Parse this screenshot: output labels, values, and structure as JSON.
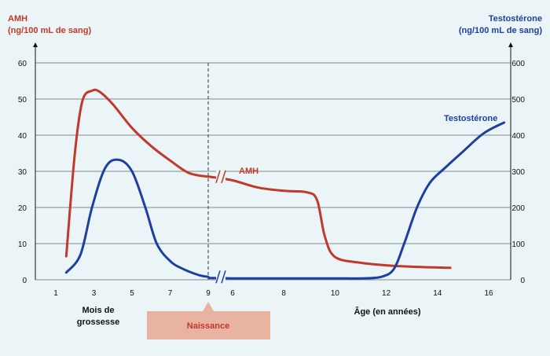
{
  "colors": {
    "background": "#ebf5f7",
    "amh": "#c0392b",
    "testosterone": "#1f3f9e",
    "grid": "#5f6670",
    "birth_box": "#e9b3a2",
    "birth_text": "#c0392b",
    "text": "#111111"
  },
  "chart_data": {
    "type": "line",
    "title": "",
    "left_axis": {
      "label_line1": "AMH",
      "label_line2": "(ng/100 mL de sang)",
      "ylim": [
        0,
        60
      ],
      "ticks": [
        "0",
        "10",
        "20",
        "30",
        "40",
        "50",
        "60"
      ]
    },
    "right_axis": {
      "label_line1": "Testostérone",
      "label_line2": "(ng/100 mL de sang)",
      "ylim": [
        0,
        600
      ],
      "ticks": [
        "0",
        "100",
        "200",
        "300",
        "400",
        "500",
        "600"
      ]
    },
    "x_axis": {
      "pregnancy_label_line1": "Mois de",
      "pregnancy_label_line2": "grossesse",
      "age_label": "Âge (en années)",
      "pregnancy_ticks": [
        "1",
        "3",
        "5",
        "7",
        "9"
      ],
      "age_ticks": [
        "6",
        "8",
        "10",
        "12",
        "14",
        "16"
      ],
      "birth_label": "Naissance"
    },
    "grid": true,
    "series": [
      {
        "name": "AMH",
        "axis": "left",
        "pregnancy_months": [
          [
            1.55,
            6.5
          ],
          [
            2.0,
            35
          ],
          [
            2.4,
            49.5
          ],
          [
            2.9,
            52.3
          ],
          [
            3.3,
            52
          ],
          [
            4.0,
            48.5
          ],
          [
            5.0,
            42
          ],
          [
            6.0,
            37
          ],
          [
            7.0,
            33
          ],
          [
            8.0,
            29.5
          ],
          [
            9.0,
            28.5
          ]
        ],
        "age_years": [
          [
            5.1,
            28.5
          ],
          [
            6.0,
            27.5
          ],
          [
            7.0,
            25.5
          ],
          [
            8.0,
            24.6
          ],
          [
            8.9,
            24.2
          ],
          [
            9.3,
            22
          ],
          [
            9.6,
            12
          ],
          [
            10.0,
            6.3
          ],
          [
            11.0,
            4.7
          ],
          [
            12.0,
            4.0
          ],
          [
            13.0,
            3.6
          ],
          [
            14.5,
            3.3
          ]
        ]
      },
      {
        "name": "Testostérone",
        "axis": "right",
        "pregnancy_months": [
          [
            1.55,
            20
          ],
          [
            2.3,
            70
          ],
          [
            2.9,
            200
          ],
          [
            3.6,
            310
          ],
          [
            4.3,
            332
          ],
          [
            5.0,
            300
          ],
          [
            5.7,
            200
          ],
          [
            6.3,
            100
          ],
          [
            7.0,
            52
          ],
          [
            7.6,
            32
          ],
          [
            8.5,
            13
          ],
          [
            9.0,
            8
          ]
        ],
        "age_years": [
          [
            5.1,
            5
          ],
          [
            6.0,
            4
          ],
          [
            8.0,
            4
          ],
          [
            10.0,
            4
          ],
          [
            11.0,
            4
          ],
          [
            11.8,
            8
          ],
          [
            12.3,
            30
          ],
          [
            12.7,
            100
          ],
          [
            13.2,
            200
          ],
          [
            13.7,
            268
          ],
          [
            14.3,
            310
          ],
          [
            15.0,
            355
          ],
          [
            15.8,
            405
          ],
          [
            16.6,
            435
          ]
        ]
      }
    ]
  }
}
